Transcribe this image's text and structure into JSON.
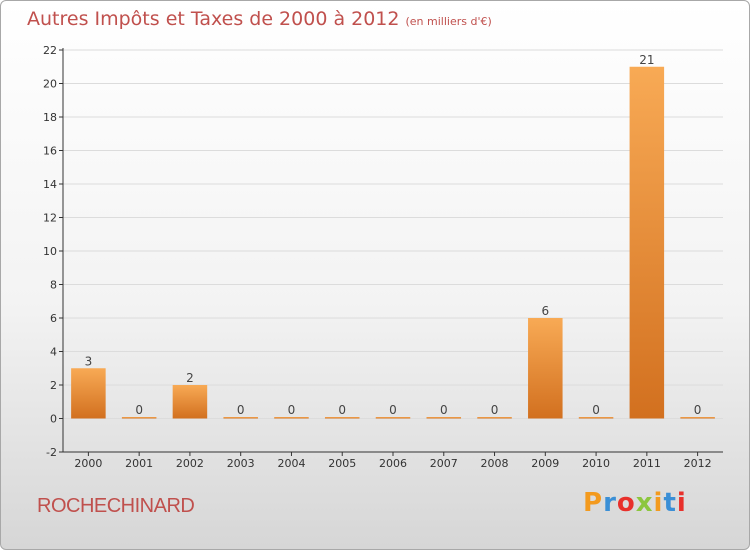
{
  "title": "Autres Impôts et Taxes de 2000 à 2012",
  "subtitle": "(en milliers d'€)",
  "commune": "ROCHECHINARD",
  "logo_text": "Proxiti",
  "colors": {
    "title": "#c0504d",
    "bar_light": "#f8aa55",
    "bar_dark": "#d2701f",
    "axis": "#333333",
    "grid": "#dcdcdc"
  },
  "chart_data": {
    "type": "bar",
    "title": "Autres Impôts et Taxes de 2000 à 2012",
    "subtitle": "(en milliers d'€)",
    "categories": [
      "2000",
      "2001",
      "2002",
      "2003",
      "2004",
      "2005",
      "2006",
      "2007",
      "2008",
      "2009",
      "2010",
      "2011",
      "2012"
    ],
    "values": [
      3,
      0,
      2,
      0,
      0,
      0,
      0,
      0,
      0,
      6,
      0,
      21,
      0
    ],
    "data_labels": [
      "3",
      "0",
      "2",
      "0",
      "0",
      "0",
      "0",
      "0",
      "0",
      "6",
      "0",
      "21",
      "0"
    ],
    "ylim": [
      -2,
      22
    ],
    "yticks": [
      -2,
      0,
      2,
      4,
      6,
      8,
      10,
      12,
      14,
      16,
      18,
      20,
      22
    ],
    "grid": true,
    "xlabel": "",
    "ylabel": ""
  }
}
